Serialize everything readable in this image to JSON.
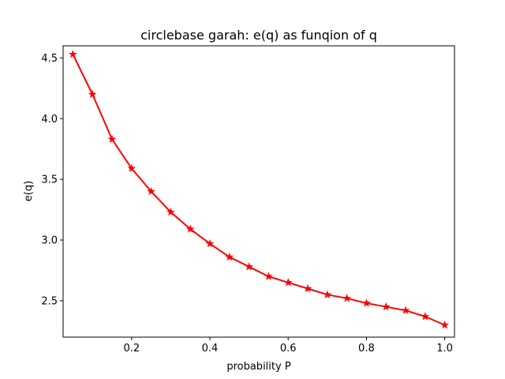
{
  "chart_data": {
    "type": "line",
    "title": "circlebase garah: e(q) as funqion of q",
    "xlabel": "probability P",
    "ylabel": "e(q)",
    "xlim": [
      0.025,
      1.025
    ],
    "ylim": [
      2.2,
      4.6
    ],
    "x_ticks": [
      0.2,
      0.4,
      0.6,
      0.8,
      1.0
    ],
    "x_tick_labels": [
      "0.2",
      "0.4",
      "0.6",
      "0.8",
      "1.0"
    ],
    "y_ticks": [
      2.5,
      3.0,
      3.5,
      4.0,
      4.5
    ],
    "y_tick_labels": [
      "2.5",
      "3.0",
      "3.5",
      "4.0",
      "4.5"
    ],
    "grid": false,
    "series": [
      {
        "color": "#ff0000",
        "marker": "star",
        "x": [
          0.05,
          0.1,
          0.15,
          0.2,
          0.25,
          0.3,
          0.35,
          0.4,
          0.45,
          0.5,
          0.55,
          0.6,
          0.65,
          0.7,
          0.75,
          0.8,
          0.85,
          0.9,
          0.95,
          1.0
        ],
        "y": [
          4.53,
          4.2,
          3.83,
          3.59,
          3.4,
          3.23,
          3.09,
          2.97,
          2.86,
          2.78,
          2.7,
          2.65,
          2.6,
          2.55,
          2.52,
          2.48,
          2.45,
          2.42,
          2.37,
          2.3
        ]
      }
    ]
  }
}
